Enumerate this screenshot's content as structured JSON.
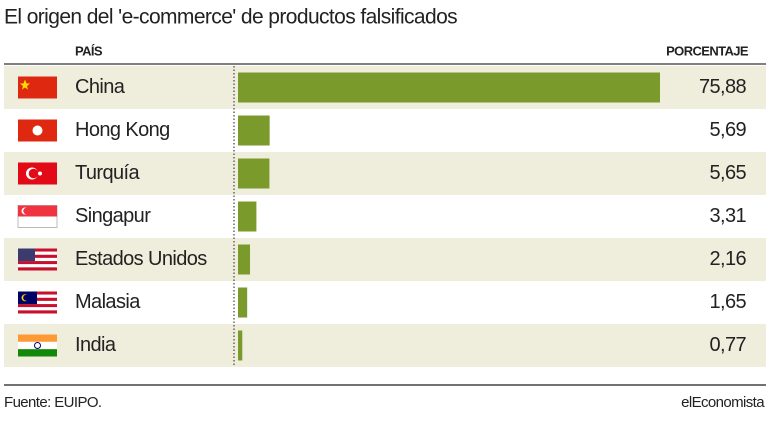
{
  "chart_data": {
    "type": "bar",
    "title": "El origen del 'e-commerce' de productos falsificados",
    "columns": [
      "PAÍS",
      "PORCENTAJE"
    ],
    "categories": [
      "China",
      "Hong Kong",
      "Turquía",
      "Singapur",
      "Estados Unidos",
      "Malasia",
      "India"
    ],
    "values": [
      75.88,
      5.69,
      5.65,
      3.31,
      2.16,
      1.65,
      0.77
    ],
    "value_labels": [
      "75,88",
      "5,69",
      "5,65",
      "3,31",
      "2,16",
      "1,65",
      "0,77"
    ],
    "color": "#7b9a2c",
    "source": "Fuente: EUIPO.",
    "brand": "elEconomista"
  }
}
